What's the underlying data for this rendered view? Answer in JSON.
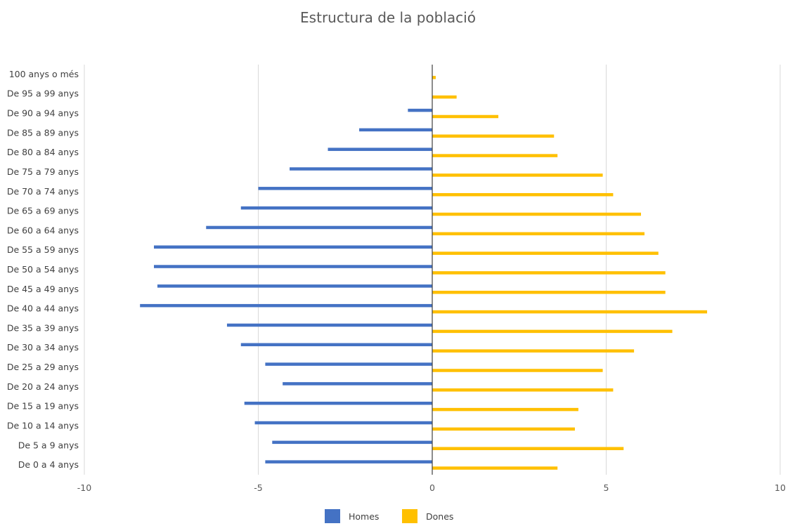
{
  "chart_data": {
    "type": "bar",
    "orientation": "horizontal",
    "title": "Estructura de la població",
    "categories": [
      "100 anys o més",
      "De 95 a 99 anys",
      "De 90 a 94 anys",
      "De 85 a 89 anys",
      "De 80 a 84 anys",
      "De 75 a 79 anys",
      "De 70 a 74 anys",
      "De 65 a 69 anys",
      "De 60 a 64 anys",
      "De 55 a 59 anys",
      "De 50 a 54 anys",
      "De 45 a 49 anys",
      "De 40 a 44 anys",
      "De 35 a 39 anys",
      "De 30 a 34 anys",
      "De 25 a 29 anys",
      "De 20 a 24 anys",
      "De 15 a 19 anys",
      "De 10 a 14 anys",
      "De 5 a 9 anys",
      "De 0 a 4 anys"
    ],
    "series": [
      {
        "name": "Homes",
        "color": "#4472C4",
        "values": [
          0,
          0,
          -0.7,
          -2.1,
          -3.0,
          -4.1,
          -5.0,
          -5.5,
          -6.5,
          -8.0,
          -8.0,
          -7.9,
          -8.4,
          -5.9,
          -5.5,
          -4.8,
          -4.3,
          -5.4,
          -5.1,
          -4.6,
          -4.8
        ]
      },
      {
        "name": "Dones",
        "color": "#FFC000",
        "values": [
          0.1,
          0.7,
          1.9,
          3.5,
          3.6,
          4.9,
          5.2,
          6.0,
          6.1,
          6.5,
          6.7,
          6.7,
          7.9,
          6.9,
          5.8,
          4.9,
          5.2,
          4.2,
          4.1,
          5.5,
          3.6
        ]
      }
    ],
    "xlim": [
      -10,
      10
    ],
    "xticks": [
      -10,
      -5,
      0,
      5,
      10
    ],
    "xtick_labels": [
      "-10",
      "-5",
      "0",
      "5",
      "10"
    ],
    "grid": true,
    "legend_position": "bottom"
  }
}
